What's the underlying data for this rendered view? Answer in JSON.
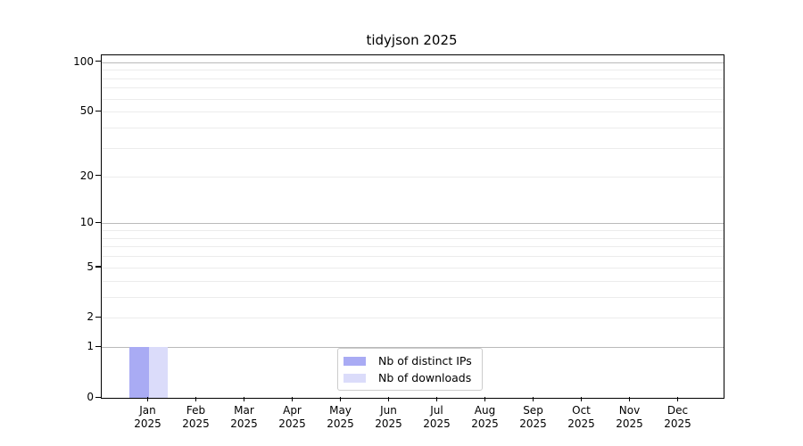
{
  "chart_data": {
    "type": "bar",
    "title": "tidyjson 2025",
    "categories": [
      "Jan",
      "Feb",
      "Mar",
      "Apr",
      "May",
      "Jun",
      "Jul",
      "Aug",
      "Sep",
      "Oct",
      "Nov",
      "Dec"
    ],
    "year": "2025",
    "series": [
      {
        "name": "Nb of distinct IPs",
        "color": "#a9abf4",
        "values": [
          1,
          0,
          0,
          0,
          0,
          0,
          0,
          0,
          0,
          0,
          0,
          0
        ]
      },
      {
        "name": "Nb of downloads",
        "color": "#dbdcfa",
        "values": [
          1,
          0,
          0,
          0,
          0,
          0,
          0,
          0,
          0,
          0,
          0,
          0
        ]
      }
    ],
    "xlabel": "",
    "ylabel": "",
    "y_axis": {
      "scale": "log1p",
      "tick_values": [
        0,
        1,
        2,
        5,
        10,
        20,
        50,
        100
      ],
      "ylim": [
        0,
        110
      ],
      "major_gridlines": [
        1,
        10,
        100
      ],
      "minor_gridlines": [
        2,
        3,
        4,
        5,
        6,
        7,
        8,
        9,
        20,
        30,
        40,
        50,
        60,
        70,
        80,
        90
      ]
    },
    "legend": {
      "position": "lower center"
    },
    "colors": {
      "major_grid": "#bababa",
      "minor_grid": "#ececec",
      "spine": "#000000",
      "text": "#000000",
      "background": "#ffffff"
    }
  }
}
